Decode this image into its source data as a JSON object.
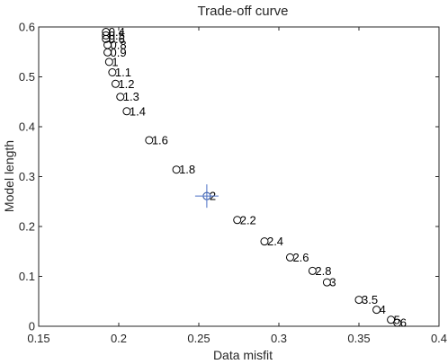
{
  "chart_data": {
    "type": "scatter",
    "title": "Trade-off curve",
    "xlabel": "Data misfit",
    "ylabel": "Model length",
    "xlim": [
      0.15,
      0.4
    ],
    "ylim": [
      0,
      0.6
    ],
    "xticks": [
      0.15,
      0.2,
      0.25,
      0.3,
      0.35,
      0.4
    ],
    "xtick_labels": [
      "0.15",
      "0.2",
      "0.25",
      "0.3",
      "0.35",
      "0.4"
    ],
    "yticks": [
      0,
      0.1,
      0.2,
      0.3,
      0.4,
      0.5,
      0.6
    ],
    "ytick_labels": [
      "0",
      "0.1",
      "0.2",
      "0.3",
      "0.4",
      "0.5",
      "0.6"
    ],
    "grid": false,
    "marker": "open-circle",
    "marker_color": "#000000",
    "highlight_color": "#4a6fc4",
    "points": [
      {
        "x": 0.192,
        "y": 0.59,
        "label": "0.4"
      },
      {
        "x": 0.192,
        "y": 0.583,
        "label": "0.5"
      },
      {
        "x": 0.192,
        "y": 0.576,
        "label": "0.6"
      },
      {
        "x": 0.193,
        "y": 0.564,
        "label": "0.8"
      },
      {
        "x": 0.193,
        "y": 0.549,
        "label": "0.9"
      },
      {
        "x": 0.194,
        "y": 0.53,
        "label": "1"
      },
      {
        "x": 0.196,
        "y": 0.509,
        "label": "1.1"
      },
      {
        "x": 0.198,
        "y": 0.486,
        "label": "1.2"
      },
      {
        "x": 0.201,
        "y": 0.46,
        "label": "1.3"
      },
      {
        "x": 0.205,
        "y": 0.431,
        "label": "1.4"
      },
      {
        "x": 0.219,
        "y": 0.373,
        "label": "1.6"
      },
      {
        "x": 0.236,
        "y": 0.314,
        "label": "1.8"
      },
      {
        "x": 0.255,
        "y": 0.261,
        "label": "2"
      },
      {
        "x": 0.274,
        "y": 0.213,
        "label": "2.2"
      },
      {
        "x": 0.291,
        "y": 0.17,
        "label": "2.4"
      },
      {
        "x": 0.307,
        "y": 0.138,
        "label": "2.6"
      },
      {
        "x": 0.321,
        "y": 0.111,
        "label": "2.8"
      },
      {
        "x": 0.33,
        "y": 0.088,
        "label": "3"
      },
      {
        "x": 0.35,
        "y": 0.053,
        "label": "3.5"
      },
      {
        "x": 0.361,
        "y": 0.033,
        "label": "4"
      },
      {
        "x": 0.37,
        "y": 0.013,
        "label": "5"
      },
      {
        "x": 0.374,
        "y": 0.007,
        "label": "6"
      }
    ],
    "highlight": {
      "x": 0.255,
      "y": 0.261,
      "label": "2"
    }
  }
}
